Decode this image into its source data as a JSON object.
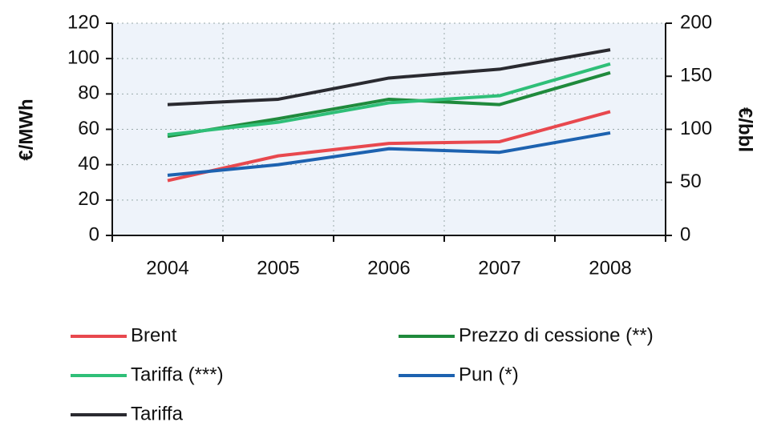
{
  "chart_data": {
    "type": "line",
    "ylabel": "€/MWh",
    "y2label": "€/bbl",
    "categories": [
      "2004",
      "2005",
      "2006",
      "2007",
      "2008"
    ],
    "ylim": [
      0,
      120
    ],
    "yticks": [
      0,
      20,
      40,
      60,
      80,
      100,
      120
    ],
    "y2lim": [
      0,
      200
    ],
    "y2ticks": [
      0,
      50,
      100,
      150,
      200
    ],
    "grid": true,
    "legend": "bottom",
    "series": [
      {
        "name": "Brent",
        "color": "#e8484e",
        "values": [
          31,
          45,
          52,
          53,
          70
        ]
      },
      {
        "name": "Prezzo di cessione (**)",
        "color": "#1f8a3c",
        "values": [
          56,
          66,
          77,
          74,
          92
        ]
      },
      {
        "name": "Tariffa (***)",
        "color": "#2fbf78",
        "values": [
          57,
          64,
          75,
          79,
          97
        ]
      },
      {
        "name": "Pun (*)",
        "color": "#1d62b0",
        "values": [
          34,
          40,
          49,
          47,
          58
        ]
      },
      {
        "name": "Tariffa",
        "color": "#2a2a30",
        "values": [
          74,
          77,
          89,
          94,
          105
        ]
      }
    ]
  }
}
